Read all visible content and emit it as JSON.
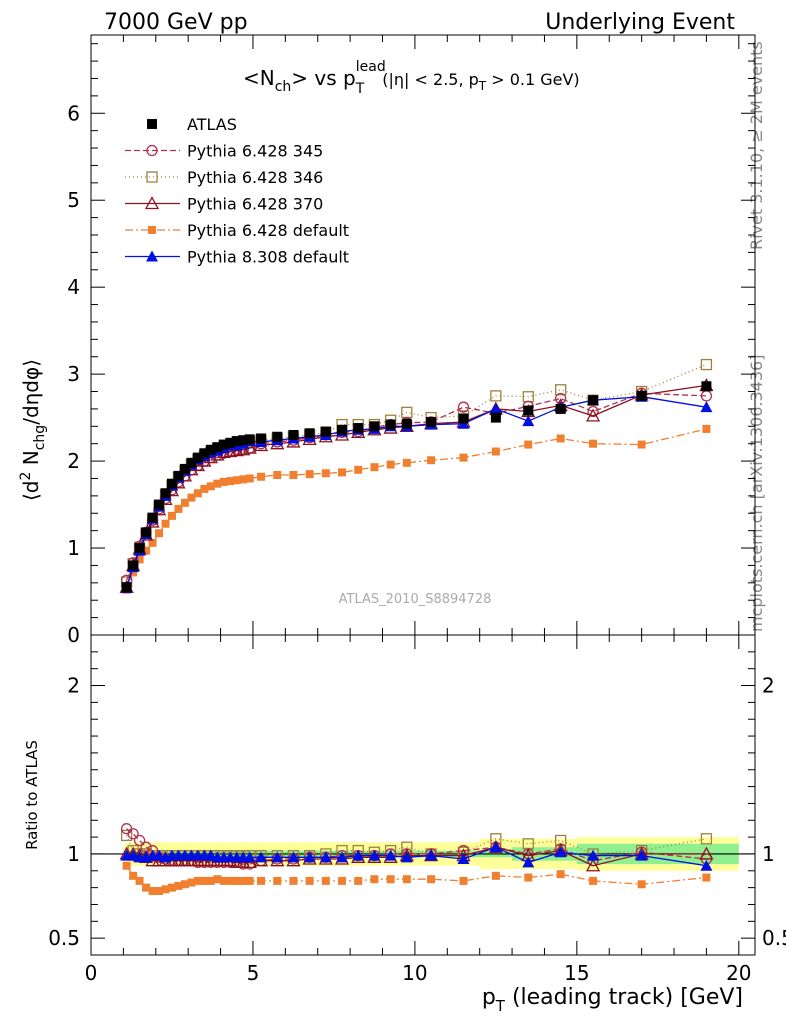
{
  "header": {
    "left": "7000 GeV pp",
    "right": "Underlying Event"
  },
  "side_labels": {
    "rivet": "Rivet 3.1.10, ≥ 2M events",
    "mcplots": "mcplots.cern.ch [arXiv:1306.3436]"
  },
  "colors": {
    "ATLAS": "#000000",
    "Pythia 6.428 345": "#b03050",
    "Pythia 6.428 346": "#a08040",
    "Pythia 6.428 370": "#8b1020",
    "Pythia 6.428 default": "#f08030",
    "Pythia 8.308 default": "#0010e0",
    "band_inner": "#90f090",
    "band_outer": "#ffff99"
  },
  "chart_data": [
    {
      "type": "scatter",
      "title": "<Nch> vs pTlead (|η| < 2.5, pT > 0.1 GeV)",
      "title_parts": {
        "main": "<N",
        "main_sub": "ch",
        "mid": "> vs p",
        "mid_sup": "lead",
        "mid_sub": "T",
        "cuts": "(|η| < 2.5, p",
        "cuts_sub": "T",
        "cuts_end": " > 0.1 GeV)"
      },
      "ylabel": "⟨d² Nchg/dηdφ⟩",
      "ylabel_parts": {
        "a": "⟨d",
        "sup": "2",
        "b": " N",
        "sub": "chg",
        "c": "/dηdφ⟩"
      },
      "watermark": "ATLAS_2010_S8894728",
      "xlim": [
        0,
        20.5
      ],
      "ylim": [
        0,
        6.9
      ],
      "yticks": [
        0,
        1,
        2,
        3,
        4,
        5,
        6
      ],
      "x": [
        1.1,
        1.3,
        1.5,
        1.7,
        1.9,
        2.1,
        2.3,
        2.5,
        2.7,
        2.9,
        3.1,
        3.3,
        3.5,
        3.7,
        3.9,
        4.1,
        4.3,
        4.5,
        4.7,
        4.9,
        5.25,
        5.75,
        6.25,
        6.75,
        7.25,
        7.75,
        8.25,
        8.75,
        9.25,
        9.75,
        10.5,
        11.5,
        12.5,
        13.5,
        14.5,
        15.5,
        17.0,
        19.0
      ],
      "legend_position": "top-left",
      "series": [
        {
          "name": "ATLAS",
          "marker": "filled-square",
          "values": [
            0.55,
            0.8,
            1.0,
            1.18,
            1.35,
            1.5,
            1.63,
            1.74,
            1.83,
            1.91,
            1.98,
            2.04,
            2.09,
            2.13,
            2.16,
            2.19,
            2.21,
            2.23,
            2.24,
            2.25,
            2.26,
            2.28,
            2.3,
            2.32,
            2.34,
            2.36,
            2.38,
            2.4,
            2.42,
            2.43,
            2.45,
            2.49,
            2.5,
            2.58,
            2.6,
            2.7,
            2.75,
            2.86
          ]
        },
        {
          "name": "Pythia 6.428 345",
          "marker": "open-circle",
          "dash": "6,3",
          "values": [
            0.63,
            0.83,
            1.02,
            1.18,
            1.32,
            1.45,
            1.57,
            1.67,
            1.76,
            1.83,
            1.9,
            1.95,
            2.0,
            2.04,
            2.07,
            2.09,
            2.11,
            2.13,
            2.13,
            2.15,
            2.2,
            2.22,
            2.24,
            2.27,
            2.3,
            2.33,
            2.34,
            2.39,
            2.42,
            2.44,
            2.45,
            2.62,
            2.55,
            2.63,
            2.72,
            2.57,
            2.78,
            2.75
          ]
        },
        {
          "name": "Pythia 6.428 346",
          "marker": "open-square",
          "dash": "1,3",
          "values": [
            0.61,
            0.82,
            1.01,
            1.17,
            1.33,
            1.48,
            1.61,
            1.72,
            1.81,
            1.89,
            1.96,
            2.02,
            2.06,
            2.1,
            2.13,
            2.16,
            2.18,
            2.2,
            2.21,
            2.22,
            2.24,
            2.26,
            2.28,
            2.3,
            2.33,
            2.42,
            2.42,
            2.42,
            2.47,
            2.56,
            2.5,
            2.52,
            2.75,
            2.74,
            2.82,
            2.7,
            2.8,
            3.11
          ]
        },
        {
          "name": "Pythia 6.428 370",
          "marker": "open-triangle",
          "dash": "",
          "values": [
            0.55,
            0.8,
            0.99,
            1.15,
            1.3,
            1.44,
            1.56,
            1.66,
            1.75,
            1.83,
            1.9,
            1.95,
            2.0,
            2.04,
            2.07,
            2.1,
            2.11,
            2.12,
            2.13,
            2.15,
            2.18,
            2.2,
            2.22,
            2.25,
            2.28,
            2.3,
            2.33,
            2.36,
            2.38,
            2.4,
            2.43,
            2.45,
            2.6,
            2.57,
            2.64,
            2.52,
            2.76,
            2.87
          ]
        },
        {
          "name": "Pythia 6.428 default",
          "marker": "filled-square-small",
          "dash": "8,3,2,3",
          "values": [
            0.52,
            0.72,
            0.87,
            0.97,
            1.06,
            1.17,
            1.28,
            1.37,
            1.45,
            1.52,
            1.58,
            1.63,
            1.68,
            1.71,
            1.74,
            1.76,
            1.77,
            1.78,
            1.79,
            1.8,
            1.82,
            1.84,
            1.84,
            1.85,
            1.86,
            1.87,
            1.9,
            1.93,
            1.96,
            1.98,
            2.01,
            2.04,
            2.11,
            2.19,
            2.26,
            2.2,
            2.19,
            2.37
          ]
        },
        {
          "name": "Pythia 8.308 default",
          "marker": "filled-triangle",
          "dash": "",
          "values": [
            0.54,
            0.78,
            0.97,
            1.16,
            1.34,
            1.48,
            1.6,
            1.72,
            1.81,
            1.89,
            1.96,
            2.02,
            2.06,
            2.1,
            2.12,
            2.15,
            2.18,
            2.18,
            2.2,
            2.23,
            2.22,
            2.24,
            2.26,
            2.28,
            2.3,
            2.34,
            2.36,
            2.37,
            2.4,
            2.4,
            2.42,
            2.43,
            2.6,
            2.46,
            2.62,
            2.7,
            2.74,
            2.62
          ]
        }
      ]
    },
    {
      "type": "scatter",
      "ylabel": "Ratio to ATLAS",
      "xlabel": "pT (leading track) [GeV]",
      "xlabel_parts": {
        "a": "p",
        "sub": "T",
        "b": " (leading track) [GeV]"
      },
      "xlim": [
        0,
        20.5
      ],
      "ylim": [
        0.4,
        2.3
      ],
      "xticks": [
        0,
        5,
        10,
        15,
        20
      ],
      "yticks": [
        0.5,
        1,
        2
      ],
      "ytick_labels": [
        "0.5",
        "1",
        "2"
      ],
      "x": [
        1.1,
        1.3,
        1.5,
        1.7,
        1.9,
        2.1,
        2.3,
        2.5,
        2.7,
        2.9,
        3.1,
        3.3,
        3.5,
        3.7,
        3.9,
        4.1,
        4.3,
        4.5,
        4.7,
        4.9,
        5.25,
        5.75,
        6.25,
        6.75,
        7.25,
        7.75,
        8.25,
        8.75,
        9.25,
        9.75,
        10.5,
        11.5,
        12.5,
        13.5,
        14.5,
        15.5,
        17.0,
        19.0
      ],
      "band_inner_halfwidth": [
        0.02,
        0.02,
        0.02,
        0.02,
        0.02,
        0.02,
        0.02,
        0.02,
        0.02,
        0.02,
        0.02,
        0.02,
        0.02,
        0.02,
        0.02,
        0.02,
        0.02,
        0.02,
        0.02,
        0.02,
        0.02,
        0.02,
        0.02,
        0.02,
        0.02,
        0.02,
        0.02,
        0.02,
        0.02,
        0.02,
        0.02,
        0.02,
        0.02,
        0.04,
        0.04,
        0.06,
        0.06,
        0.06
      ],
      "band_outer_halfwidth": [
        0.06,
        0.07,
        0.07,
        0.07,
        0.07,
        0.07,
        0.07,
        0.07,
        0.07,
        0.07,
        0.07,
        0.07,
        0.07,
        0.07,
        0.07,
        0.07,
        0.07,
        0.07,
        0.07,
        0.07,
        0.07,
        0.07,
        0.07,
        0.07,
        0.07,
        0.07,
        0.07,
        0.07,
        0.07,
        0.07,
        0.07,
        0.07,
        0.09,
        0.09,
        0.09,
        0.1,
        0.1,
        0.1
      ],
      "series": [
        {
          "name": "Pythia 6.428 345",
          "values": [
            1.15,
            1.12,
            1.08,
            1.04,
            1.02,
            0.98,
            0.97,
            0.96,
            0.96,
            0.96,
            0.96,
            0.95,
            0.95,
            0.95,
            0.95,
            0.95,
            0.95,
            0.95,
            0.94,
            0.94,
            0.96,
            0.97,
            0.97,
            0.98,
            0.98,
            0.99,
            0.99,
            0.99,
            1.0,
            1.0,
            1.0,
            1.02,
            1.04,
            1.0,
            1.03,
            0.96,
            1.01,
            0.97
          ]
        },
        {
          "name": "Pythia 6.428 346",
          "values": [
            1.11,
            1.02,
            1.0,
            1.0,
            0.99,
            0.99,
            0.99,
            0.99,
            0.99,
            0.99,
            0.99,
            0.99,
            0.99,
            0.99,
            0.99,
            0.99,
            0.99,
            0.99,
            0.99,
            0.99,
            0.99,
            0.99,
            0.99,
            0.99,
            1.0,
            1.02,
            1.02,
            1.01,
            1.02,
            1.04,
            1.0,
            1.01,
            1.09,
            1.06,
            1.08,
            1.0,
            1.02,
            1.09
          ]
        },
        {
          "name": "Pythia 6.428 370",
          "values": [
            1.0,
            1.0,
            0.99,
            0.98,
            0.96,
            0.96,
            0.96,
            0.96,
            0.96,
            0.96,
            0.96,
            0.96,
            0.96,
            0.96,
            0.96,
            0.96,
            0.96,
            0.95,
            0.95,
            0.95,
            0.96,
            0.96,
            0.96,
            0.97,
            0.97,
            0.97,
            0.98,
            0.98,
            0.98,
            0.99,
            0.99,
            0.99,
            1.04,
            0.99,
            1.02,
            0.93,
            1.0,
            1.0
          ]
        },
        {
          "name": "Pythia 6.428 default",
          "values": [
            0.93,
            0.87,
            0.84,
            0.8,
            0.78,
            0.78,
            0.79,
            0.8,
            0.81,
            0.82,
            0.83,
            0.84,
            0.84,
            0.84,
            0.85,
            0.84,
            0.84,
            0.84,
            0.84,
            0.84,
            0.84,
            0.84,
            0.84,
            0.84,
            0.84,
            0.84,
            0.84,
            0.85,
            0.85,
            0.85,
            0.85,
            0.84,
            0.87,
            0.86,
            0.88,
            0.84,
            0.82,
            0.86
          ]
        },
        {
          "name": "Pythia 8.308 default",
          "values": [
            0.99,
            0.99,
            0.98,
            0.98,
            0.99,
            0.99,
            0.98,
            0.99,
            0.99,
            0.99,
            0.99,
            0.99,
            0.99,
            0.99,
            0.98,
            0.98,
            0.98,
            0.98,
            0.98,
            0.98,
            0.98,
            0.98,
            0.98,
            0.98,
            0.98,
            0.98,
            0.99,
            0.99,
            0.99,
            0.98,
            0.99,
            0.97,
            1.04,
            0.95,
            1.01,
            0.99,
            0.99,
            0.93
          ]
        }
      ]
    }
  ]
}
